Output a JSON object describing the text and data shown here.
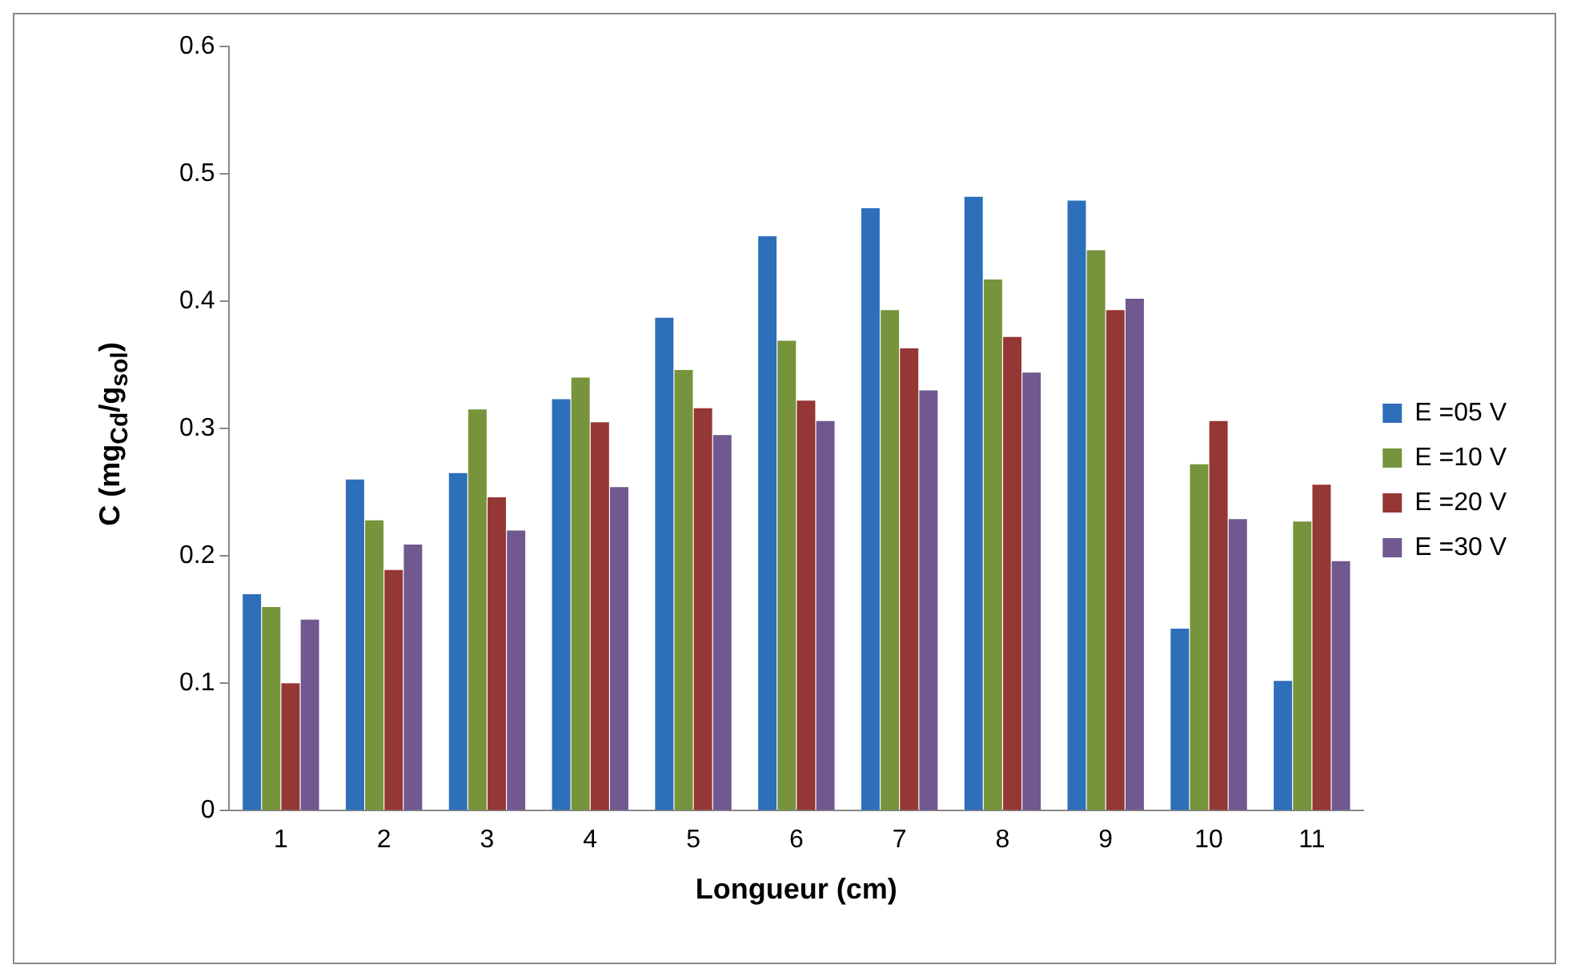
{
  "chart_data": {
    "type": "bar",
    "xlabel": "Longueur (cm)",
    "ylabel": "C (mg$_{Cd}$/g$_{sol}$)",
    "categories": [
      "1",
      "2",
      "3",
      "4",
      "5",
      "6",
      "7",
      "8",
      "9",
      "10",
      "11"
    ],
    "series": [
      {
        "name": "E =05 V",
        "color": "#2e6fba",
        "values": [
          0.17,
          0.26,
          0.265,
          0.323,
          0.387,
          0.451,
          0.473,
          0.482,
          0.479,
          0.143,
          0.102
        ]
      },
      {
        "name": "E =10 V",
        "color": "#77933c",
        "values": [
          0.16,
          0.228,
          0.315,
          0.34,
          0.346,
          0.369,
          0.393,
          0.417,
          0.44,
          0.272,
          0.227
        ]
      },
      {
        "name": "E =20 V",
        "color": "#953735",
        "values": [
          0.1,
          0.189,
          0.246,
          0.305,
          0.316,
          0.322,
          0.363,
          0.372,
          0.393,
          0.306,
          0.256
        ]
      },
      {
        "name": "E =30 V",
        "color": "#71588f",
        "values": [
          0.15,
          0.209,
          0.22,
          0.254,
          0.295,
          0.306,
          0.33,
          0.344,
          0.402,
          0.229,
          0.196
        ]
      }
    ],
    "ylim": [
      0,
      0.6
    ],
    "yticks": [
      0,
      0.1,
      0.2,
      0.3,
      0.4,
      0.5,
      0.6
    ],
    "grid": false,
    "legend": "right"
  }
}
